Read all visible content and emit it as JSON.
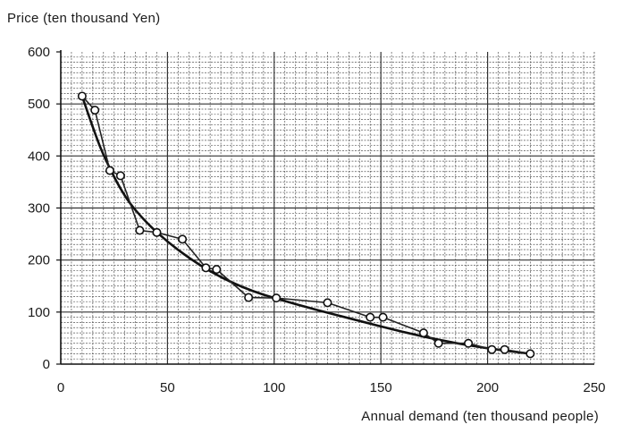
{
  "chart_data": {
    "type": "scatter",
    "title": "",
    "ylabel": "Price   (ten thousand Yen)",
    "xlabel": "Annual demand   (ten thousand people)",
    "xlim": [
      0,
      250
    ],
    "ylim": [
      0,
      600
    ],
    "x_ticks": [
      0,
      50,
      100,
      150,
      200,
      250
    ],
    "y_ticks": [
      0,
      100,
      200,
      300,
      400,
      500,
      600
    ],
    "grid": true,
    "series": [
      {
        "points": [
          {
            "x": 10,
            "y": 515
          },
          {
            "x": 16,
            "y": 488
          },
          {
            "x": 23,
            "y": 372
          },
          {
            "x": 28,
            "y": 362
          },
          {
            "x": 37,
            "y": 257
          },
          {
            "x": 45,
            "y": 253
          },
          {
            "x": 57,
            "y": 240
          },
          {
            "x": 68,
            "y": 185
          },
          {
            "x": 73,
            "y": 182
          },
          {
            "x": 88,
            "y": 128
          },
          {
            "x": 101,
            "y": 127
          },
          {
            "x": 125,
            "y": 118
          },
          {
            "x": 145,
            "y": 90
          },
          {
            "x": 151,
            "y": 90
          },
          {
            "x": 170,
            "y": 60
          },
          {
            "x": 177,
            "y": 40
          },
          {
            "x": 191,
            "y": 40
          },
          {
            "x": 202,
            "y": 28
          },
          {
            "x": 208,
            "y": 28
          },
          {
            "x": 220,
            "y": 20
          }
        ]
      },
      {
        "fit_points": [
          {
            "x": 10,
            "y": 515
          },
          {
            "x": 15,
            "y": 455
          },
          {
            "x": 20,
            "y": 400
          },
          {
            "x": 30,
            "y": 320
          },
          {
            "x": 40,
            "y": 272
          },
          {
            "x": 50,
            "y": 235
          },
          {
            "x": 60,
            "y": 204
          },
          {
            "x": 70,
            "y": 178
          },
          {
            "x": 80,
            "y": 157
          },
          {
            "x": 90,
            "y": 140
          },
          {
            "x": 100,
            "y": 127
          },
          {
            "x": 120,
            "y": 104
          },
          {
            "x": 140,
            "y": 83
          },
          {
            "x": 160,
            "y": 62
          },
          {
            "x": 180,
            "y": 44
          },
          {
            "x": 200,
            "y": 30
          },
          {
            "x": 220,
            "y": 20
          }
        ]
      }
    ]
  }
}
